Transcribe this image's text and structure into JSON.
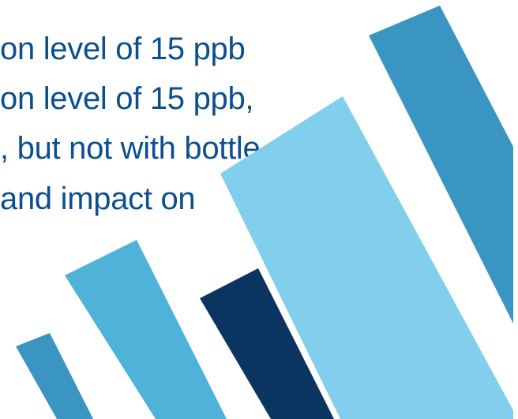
{
  "text_lines": [
    "on level of 15 ppb",
    "on level of 15 ppb,",
    ", but not with bottle",
    "and impact on"
  ],
  "colors": {
    "text": "#0b4f8f",
    "stripe_dark": "#0a3560",
    "stripe_mid": "#3a95c2",
    "stripe_sky": "#4eb2d9",
    "stripe_light": "#81cfec",
    "background": "#ffffff"
  }
}
